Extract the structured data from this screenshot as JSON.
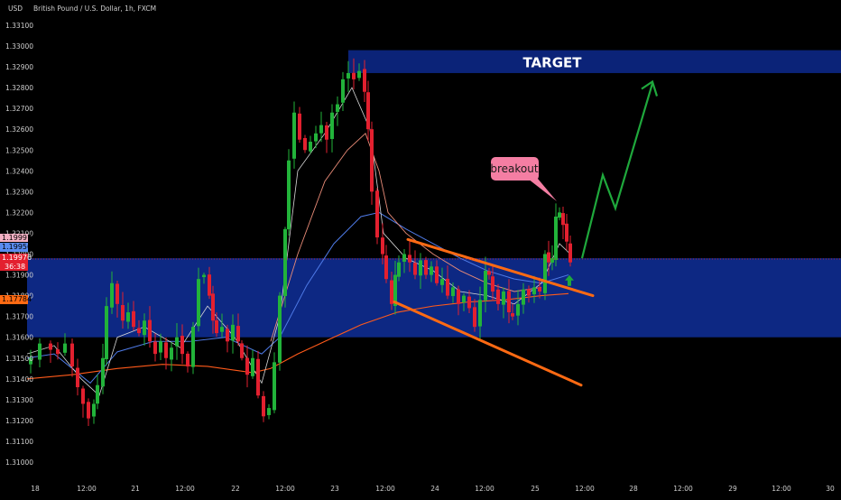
{
  "header": {
    "currency": "USD",
    "symbol_title": "British Pound / U.S. Dollar, 1h, FXCM"
  },
  "annotations": {
    "target_label": "TARGET",
    "breakout_label": "breakout"
  },
  "price_tags": {
    "top_price": "1.19997",
    "blue_price": "1.19956",
    "current_price": "1.19976",
    "countdown": "36:38",
    "orange_price": "1.17784"
  },
  "colors": {
    "background": "#000000",
    "bull": "#22b33a",
    "bear": "#e3202f",
    "zone": "#0e2a8a",
    "target_box": "#0b2378",
    "channel": "#ff6a13",
    "arrow": "#1fa83c",
    "bubble": "#f47ea3",
    "ma_fast": "#f0f0f0",
    "ma_mid": "#e88b77",
    "ma_blue": "#4f7be8",
    "ma_slow": "#ff5a1a"
  },
  "chart_data": {
    "type": "candlestick",
    "ylim": [
      1.3095,
      1.3115
    ],
    "yticks": [
      "1.33100",
      "1.33000",
      "1.32900",
      "1.32800",
      "1.32700",
      "1.32600",
      "1.32500",
      "1.32400",
      "1.32300",
      "1.32200",
      "1.32100",
      "1.32000",
      "1.31900",
      "1.31800",
      "1.31700",
      "1.31600",
      "1.31500",
      "1.31400",
      "1.31300",
      "1.31200",
      "1.31100",
      "1.31000"
    ],
    "xticks": [
      "18",
      "12:00",
      "21",
      "12:00",
      "22",
      "12:00",
      "23",
      "12:00",
      "24",
      "12:00",
      "25",
      "12:00",
      "28",
      "12:00",
      "29",
      "12:00",
      "30"
    ],
    "support_zone": [
      1.316,
      1.3198
    ],
    "target_zone": [
      1.3287,
      1.3298
    ],
    "channel_upper": [
      [
        1.3208,
        1.318
      ],
      "24 02:00 → 25 17:00"
    ],
    "channel_lower": [
      [
        1.3177,
        1.3137
      ],
      "24 00:00 → 25 12:00 (next)"
    ],
    "projection": [
      1.3198,
      1.3238,
      1.3222,
      1.3282
    ]
  }
}
